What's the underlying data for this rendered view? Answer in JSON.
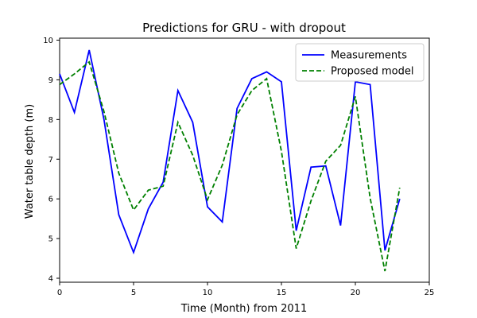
{
  "chart_data": {
    "type": "line",
    "title": "Predictions for GRU - with dropout",
    "xlabel": "Time (Month) from 2011",
    "ylabel": "Water table depth (m)",
    "xlim": [
      0,
      25
    ],
    "ylim": [
      3.9,
      10.05
    ],
    "xticks": [
      0,
      5,
      10,
      15,
      20,
      25
    ],
    "yticks": [
      4,
      5,
      6,
      7,
      8,
      9,
      10
    ],
    "grid": false,
    "legend": "top-right",
    "series": [
      {
        "name": "Measurements",
        "color": "#0000ff",
        "style": "solid",
        "x": [
          0,
          1,
          2,
          3,
          4,
          5,
          6,
          7,
          8,
          9,
          10,
          11,
          12,
          13,
          14,
          15,
          16,
          17,
          18,
          19,
          20,
          21,
          22,
          23
        ],
        "y": [
          9.15,
          8.18,
          9.75,
          8.0,
          5.6,
          4.65,
          5.75,
          6.42,
          8.73,
          7.93,
          5.8,
          5.42,
          8.28,
          9.03,
          9.2,
          8.95,
          5.2,
          6.8,
          6.83,
          5.33,
          8.95,
          8.88,
          4.7,
          6.0
        ]
      },
      {
        "name": "Proposed model",
        "color": "#008000",
        "style": "dashed",
        "x": [
          0,
          1,
          2,
          3,
          4,
          5,
          6,
          7,
          8,
          9,
          10,
          11,
          12,
          13,
          14,
          15,
          16,
          17,
          18,
          19,
          20,
          21,
          22,
          23
        ],
        "y": [
          8.88,
          9.15,
          9.45,
          8.2,
          6.65,
          5.72,
          6.22,
          6.32,
          7.93,
          7.1,
          5.98,
          6.85,
          8.12,
          8.73,
          9.03,
          7.2,
          4.75,
          5.95,
          6.95,
          7.35,
          8.58,
          6.02,
          4.18,
          6.28
        ]
      }
    ]
  }
}
